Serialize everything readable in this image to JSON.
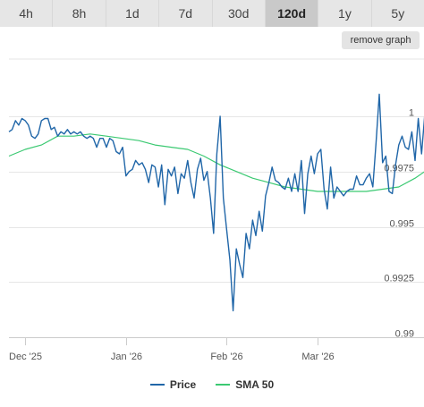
{
  "tabs": [
    {
      "label": "4h",
      "active": false
    },
    {
      "label": "8h",
      "active": false
    },
    {
      "label": "1d",
      "active": false
    },
    {
      "label": "7d",
      "active": false
    },
    {
      "label": "30d",
      "active": false
    },
    {
      "label": "120d",
      "active": true
    },
    {
      "label": "1y",
      "active": false
    },
    {
      "label": "5y",
      "active": false
    }
  ],
  "remove_graph_label": "remove graph",
  "legend": {
    "price_label": "Price",
    "sma_label": "SMA 50"
  },
  "chart_data": {
    "type": "line",
    "title": "",
    "xlabel": "",
    "ylabel": "",
    "x_start": "2025-11-26",
    "x_end": "2026-03-31",
    "x_ticks": [
      {
        "label": "Dec '25",
        "date": "2025-12-01"
      },
      {
        "label": "Jan '26",
        "date": "2026-01-01"
      },
      {
        "label": "Feb '26",
        "date": "2026-02-01"
      },
      {
        "label": "Mar '26",
        "date": "2026-03-01"
      }
    ],
    "y_ticks": [
      {
        "label": "1",
        "value": 1.0
      },
      {
        "label": "0.9975",
        "value": 0.9975
      },
      {
        "label": "0.995",
        "value": 0.995
      },
      {
        "label": "0.9925",
        "value": 0.9925
      },
      {
        "label": "0.99",
        "value": 0.99
      }
    ],
    "ylim": [
      0.99,
      1.0003
    ],
    "grid": "horizontal",
    "legend_position": "bottom-center",
    "series": [
      {
        "name": "Price",
        "color": "#2066a8",
        "points": [
          [
            "2025-11-26",
            0.9993
          ],
          [
            "2025-11-27",
            0.9994
          ],
          [
            "2025-11-28",
            0.9998
          ],
          [
            "2025-11-29",
            0.9996
          ],
          [
            "2025-11-30",
            0.9999
          ],
          [
            "2025-12-01",
            0.9998
          ],
          [
            "2025-12-02",
            0.9996
          ],
          [
            "2025-12-03",
            0.9991
          ],
          [
            "2025-12-04",
            0.999
          ],
          [
            "2025-12-05",
            0.9992
          ],
          [
            "2025-12-06",
            0.9998
          ],
          [
            "2025-12-07",
            0.9999
          ],
          [
            "2025-12-08",
            0.9999
          ],
          [
            "2025-12-09",
            0.9994
          ],
          [
            "2025-12-10",
            0.9995
          ],
          [
            "2025-12-11",
            0.9991
          ],
          [
            "2025-12-12",
            0.9993
          ],
          [
            "2025-12-13",
            0.9992
          ],
          [
            "2025-12-14",
            0.9994
          ],
          [
            "2025-12-15",
            0.9992
          ],
          [
            "2025-12-16",
            0.9993
          ],
          [
            "2025-12-17",
            0.9992
          ],
          [
            "2025-12-18",
            0.9993
          ],
          [
            "2025-12-19",
            0.9991
          ],
          [
            "2025-12-20",
            0.999
          ],
          [
            "2025-12-21",
            0.9991
          ],
          [
            "2025-12-22",
            0.999
          ],
          [
            "2025-12-23",
            0.9986
          ],
          [
            "2025-12-24",
            0.999
          ],
          [
            "2025-12-25",
            0.999
          ],
          [
            "2025-12-26",
            0.9986
          ],
          [
            "2025-12-27",
            0.999
          ],
          [
            "2025-12-28",
            0.9989
          ],
          [
            "2025-12-29",
            0.9984
          ],
          [
            "2025-12-30",
            0.9983
          ],
          [
            "2025-12-31",
            0.9986
          ],
          [
            "2026-01-01",
            0.9973
          ],
          [
            "2026-01-02",
            0.9975
          ],
          [
            "2026-01-03",
            0.9976
          ],
          [
            "2026-01-04",
            0.998
          ],
          [
            "2026-01-05",
            0.9978
          ],
          [
            "2026-01-06",
            0.9979
          ],
          [
            "2026-01-07",
            0.9976
          ],
          [
            "2026-01-08",
            0.997
          ],
          [
            "2026-01-09",
            0.9978
          ],
          [
            "2026-01-10",
            0.9977
          ],
          [
            "2026-01-11",
            0.9968
          ],
          [
            "2026-01-12",
            0.9978
          ],
          [
            "2026-01-13",
            0.996
          ],
          [
            "2026-01-14",
            0.9976
          ],
          [
            "2026-01-15",
            0.9973
          ],
          [
            "2026-01-16",
            0.9977
          ],
          [
            "2026-01-17",
            0.9965
          ],
          [
            "2026-01-18",
            0.9974
          ],
          [
            "2026-01-19",
            0.9972
          ],
          [
            "2026-01-20",
            0.998
          ],
          [
            "2026-01-21",
            0.997
          ],
          [
            "2026-01-22",
            0.9963
          ],
          [
            "2026-01-23",
            0.9976
          ],
          [
            "2026-01-24",
            0.9981
          ],
          [
            "2026-01-25",
            0.9971
          ],
          [
            "2026-01-26",
            0.9975
          ],
          [
            "2026-01-27",
            0.9963
          ],
          [
            "2026-01-28",
            0.9947
          ],
          [
            "2026-01-29",
            0.9983
          ],
          [
            "2026-01-30",
            1.0
          ],
          [
            "2026-01-31",
            0.9963
          ],
          [
            "2026-02-01",
            0.9949
          ],
          [
            "2026-02-02",
            0.9935
          ],
          [
            "2026-02-03",
            0.9912
          ],
          [
            "2026-02-04",
            0.994
          ],
          [
            "2026-02-05",
            0.9933
          ],
          [
            "2026-02-06",
            0.9927
          ],
          [
            "2026-02-07",
            0.9947
          ],
          [
            "2026-02-08",
            0.994
          ],
          [
            "2026-02-09",
            0.9953
          ],
          [
            "2026-02-10",
            0.9946
          ],
          [
            "2026-02-11",
            0.9957
          ],
          [
            "2026-02-12",
            0.9948
          ],
          [
            "2026-02-13",
            0.9964
          ],
          [
            "2026-02-14",
            0.997
          ],
          [
            "2026-02-15",
            0.9977
          ],
          [
            "2026-02-16",
            0.9971
          ],
          [
            "2026-02-17",
            0.997
          ],
          [
            "2026-02-18",
            0.9968
          ],
          [
            "2026-02-19",
            0.9967
          ],
          [
            "2026-02-20",
            0.9972
          ],
          [
            "2026-02-21",
            0.9966
          ],
          [
            "2026-02-22",
            0.9974
          ],
          [
            "2026-02-23",
            0.9966
          ],
          [
            "2026-02-24",
            0.998
          ],
          [
            "2026-02-25",
            0.9956
          ],
          [
            "2026-02-26",
            0.9974
          ],
          [
            "2026-02-27",
            0.9982
          ],
          [
            "2026-02-28",
            0.9974
          ],
          [
            "2026-03-01",
            0.9983
          ],
          [
            "2026-03-02",
            0.9985
          ],
          [
            "2026-03-03",
            0.9967
          ],
          [
            "2026-03-04",
            0.9958
          ],
          [
            "2026-03-05",
            0.9977
          ],
          [
            "2026-03-06",
            0.9963
          ],
          [
            "2026-03-07",
            0.9968
          ],
          [
            "2026-03-08",
            0.9966
          ],
          [
            "2026-03-09",
            0.9964
          ],
          [
            "2026-03-10",
            0.9966
          ],
          [
            "2026-03-11",
            0.9967
          ],
          [
            "2026-03-12",
            0.9967
          ],
          [
            "2026-03-13",
            0.9973
          ],
          [
            "2026-03-14",
            0.9969
          ],
          [
            "2026-03-15",
            0.9969
          ],
          [
            "2026-03-16",
            0.9972
          ],
          [
            "2026-03-17",
            0.9974
          ],
          [
            "2026-03-18",
            0.9968
          ],
          [
            "2026-03-19",
            0.9988
          ],
          [
            "2026-03-20",
            1.001
          ],
          [
            "2026-03-21",
            0.9979
          ],
          [
            "2026-03-22",
            0.9982
          ],
          [
            "2026-03-23",
            0.9966
          ],
          [
            "2026-03-24",
            0.9965
          ],
          [
            "2026-03-25",
            0.9978
          ],
          [
            "2026-03-26",
            0.9987
          ],
          [
            "2026-03-27",
            0.9991
          ],
          [
            "2026-03-28",
            0.9986
          ],
          [
            "2026-03-29",
            0.9985
          ],
          [
            "2026-03-30",
            0.9993
          ],
          [
            "2026-03-31",
            0.998
          ],
          [
            "2026-04-01",
            0.9999
          ],
          [
            "2026-04-02",
            0.9983
          ],
          [
            "2026-04-03",
            1.0001
          ]
        ]
      },
      {
        "name": "SMA 50",
        "color": "#3bc972",
        "points": [
          [
            "2025-11-26",
            0.9982
          ],
          [
            "2025-12-01",
            0.9985
          ],
          [
            "2025-12-06",
            0.9987
          ],
          [
            "2025-12-11",
            0.9991
          ],
          [
            "2025-12-16",
            0.9991
          ],
          [
            "2025-12-21",
            0.9992
          ],
          [
            "2025-12-26",
            0.9991
          ],
          [
            "2025-12-31",
            0.999
          ],
          [
            "2026-01-05",
            0.9989
          ],
          [
            "2026-01-10",
            0.9987
          ],
          [
            "2026-01-15",
            0.9986
          ],
          [
            "2026-01-20",
            0.9985
          ],
          [
            "2026-01-25",
            0.9982
          ],
          [
            "2026-01-30",
            0.9978
          ],
          [
            "2026-02-04",
            0.9975
          ],
          [
            "2026-02-09",
            0.9972
          ],
          [
            "2026-02-14",
            0.997
          ],
          [
            "2026-02-19",
            0.9968
          ],
          [
            "2026-02-24",
            0.9967
          ],
          [
            "2026-03-01",
            0.9966
          ],
          [
            "2026-03-06",
            0.9966
          ],
          [
            "2026-03-11",
            0.9966
          ],
          [
            "2026-03-16",
            0.9966
          ],
          [
            "2026-03-21",
            0.9967
          ],
          [
            "2026-03-26",
            0.9968
          ],
          [
            "2026-03-31",
            0.9972
          ],
          [
            "2026-04-03",
            0.9975
          ]
        ]
      }
    ]
  }
}
